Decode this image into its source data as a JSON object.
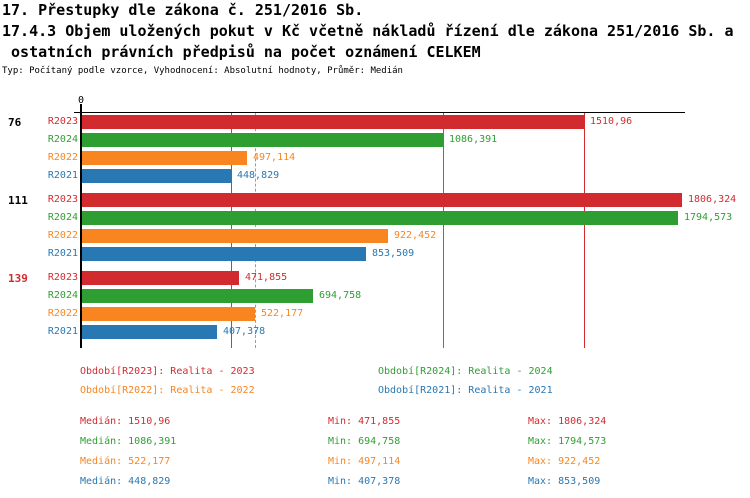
{
  "header": {
    "line1": "17. Přestupky dle zákona č. 251/2016 Sb.",
    "line2": "17.4.3 Objem uložených pokut v Kč včetně nákladů řízení dle zákona 251/2016 Sb. a",
    "line3": " ostatních právních předpisů na počet oznámení CELKEM",
    "meta": "Typ: Počítaný podle vzorce, Vyhodnocení: Absolutní hodnoty, Průměr: Medián"
  },
  "colors": {
    "red": "#D22B2F",
    "green": "#2F9E32",
    "orange": "#F8851F",
    "blue": "#2878B4",
    "axis": "#000000"
  },
  "chart_data": {
    "type": "bar",
    "orientation": "horizontal",
    "title": "17.4.3 Objem uložených pokut v Kč včetně nákladů řízení dle zákona 251/2016 Sb. a ostatních právních předpisů na počet oznámení CELKEM",
    "value_axis": {
      "min": 0,
      "max": 1815,
      "origin_tick_label": "0"
    },
    "grid": false,
    "series": [
      {
        "id": "R2023",
        "name": "Realita - 2023",
        "color": "#D22B2F"
      },
      {
        "id": "R2024",
        "name": "Realita - 2024",
        "color": "#2F9E32"
      },
      {
        "id": "R2022",
        "name": "Realita - 2022",
        "color": "#F8851F"
      },
      {
        "id": "R2021",
        "name": "Realita - 2021",
        "color": "#2878B4"
      }
    ],
    "groups": [
      {
        "label": "76",
        "label_color": "#000000",
        "values": [
          1510.96,
          1086.391,
          497.114,
          448.829
        ],
        "value_labels": [
          "1510,96",
          "1086,391",
          "497,114",
          "448,829"
        ]
      },
      {
        "label": "111",
        "label_color": "#000000",
        "values": [
          1806.324,
          1794.573,
          922.452,
          853.509
        ],
        "value_labels": [
          "1806,324",
          "1794,573",
          "922,452",
          "853,509"
        ]
      },
      {
        "label": "139",
        "label_color": "#D22B2F",
        "values": [
          471.855,
          694.758,
          522.177,
          407.378
        ],
        "value_labels": [
          "471,855",
          "694,758",
          "522,177",
          "407,378"
        ]
      }
    ],
    "median_lines": [
      {
        "series": "R2023",
        "value": 1510.96,
        "style": "solid",
        "color": "#D22B2F"
      },
      {
        "series": "R2024",
        "value": 1086.391,
        "style": "solid",
        "color": "#2F9E32"
      },
      {
        "series": "R2022",
        "value": 522.177,
        "style": "dashed",
        "color": "#F8851F"
      },
      {
        "series": "R2021",
        "value": 448.829,
        "style": "solid",
        "color": "#2878B4"
      }
    ]
  },
  "legend": {
    "items": [
      {
        "label": "Období[R2023]: Realita - 2023",
        "color": "#D22B2F"
      },
      {
        "label": "Období[R2024]: Realita - 2024",
        "color": "#2F9E32"
      },
      {
        "label": "Období[R2022]: Realita - 2022",
        "color": "#F8851F"
      },
      {
        "label": "Období[R2021]: Realita - 2021",
        "color": "#2878B4"
      }
    ]
  },
  "stats": {
    "labels": {
      "median": "Medián",
      "min": "Min",
      "max": "Max"
    },
    "rows": [
      {
        "series": "R2023",
        "color": "#D22B2F",
        "median": "1510,96",
        "min": "471,855",
        "max": "1806,324"
      },
      {
        "series": "R2024",
        "color": "#2F9E32",
        "median": "1086,391",
        "min": "694,758",
        "max": "1794,573"
      },
      {
        "series": "R2022",
        "color": "#F8851F",
        "median": "522,177",
        "min": "497,114",
        "max": "922,452"
      },
      {
        "series": "R2021",
        "color": "#2878B4",
        "median": "448,829",
        "min": "407,378",
        "max": "853,509"
      }
    ]
  }
}
